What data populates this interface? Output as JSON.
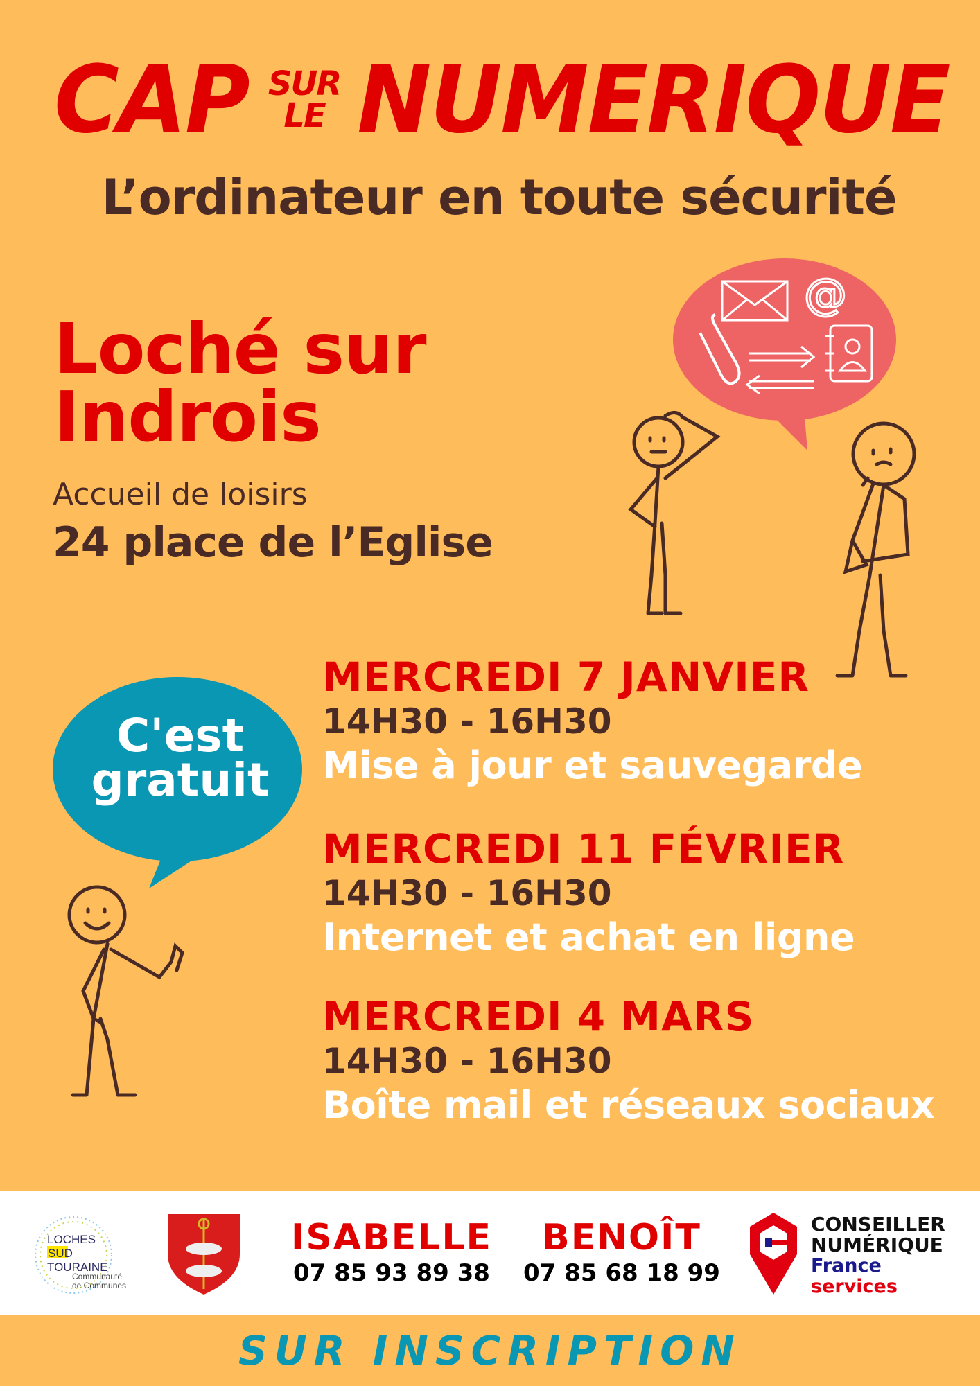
{
  "colors": {
    "background": "#ffbc5b",
    "title_red": "#e10000",
    "brown": "#4a2a25",
    "bubble_blue": "#0a97b3",
    "bubble_pink": "#ee6464"
  },
  "header": {
    "title_left": "CAP",
    "title_small_top": "SUR",
    "title_small_bottom": "LE",
    "title_right": "NUMERIQUE",
    "subtitle": "L’ordinateur en toute sécurité"
  },
  "location": {
    "city_line1": "Loché sur",
    "city_line2": "Indrois",
    "venue": "Accueil de loisirs",
    "address": "24 place de l’Eglise"
  },
  "free_bubble": {
    "line1": "C'est",
    "line2": "gratuit"
  },
  "events": [
    {
      "date": "MERCREDI 7 JANVIER",
      "time": "14H30 - 16H30",
      "topic": "Mise à jour et sauvegarde"
    },
    {
      "date": "MERCREDI 11 FÉVRIER",
      "time": "14H30 - 16H30",
      "topic": "Internet  et achat en ligne"
    },
    {
      "date": "MERCREDI 4 MARS",
      "time": "14H30 - 16H30",
      "topic": "Boîte mail et réseaux sociaux"
    }
  ],
  "footer": {
    "logo_loches": {
      "line1": "LOCHES",
      "line2": "SUD",
      "line3": "TOURAINE",
      "line4": "Communauté de Communes"
    },
    "contacts": [
      {
        "name": "ISABELLE",
        "phone": "07 85 93 89 38"
      },
      {
        "name": "BENOÎT",
        "phone": "07 85 68 18 99"
      }
    ],
    "conseiller": {
      "line1": "CONSEILLER",
      "line2": "NUMÉRIQUE",
      "line3": "France",
      "line4": "services"
    }
  },
  "signup": "SUR INSCRIPTION",
  "icons": [
    "envelope-icon",
    "at-icon",
    "paperclip-icon",
    "arrows-exchange-icon",
    "address-book-icon",
    "coat-of-arms-icon",
    "location-pin-icon"
  ]
}
